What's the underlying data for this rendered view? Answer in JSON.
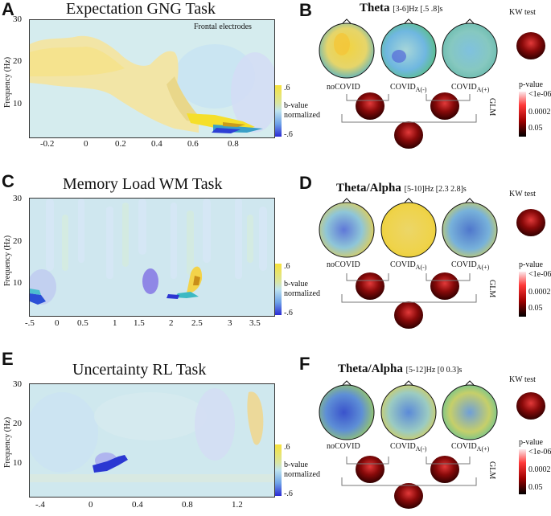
{
  "panels": {
    "A": {
      "letter": "A",
      "title": "Expectation GNG Task",
      "annotation": "Frontal electrodes",
      "ylabel": "Frequency (Hz)",
      "yticks": [
        "30",
        "20",
        "10"
      ],
      "xticks": [
        "-0.2",
        "0",
        "0.2",
        "0.4",
        "0.6",
        "0.8"
      ],
      "cbar": {
        "top": ".6",
        "mid1": "b-value",
        "mid2": "normalized",
        "bottom": "-.6"
      }
    },
    "B": {
      "letter": "B",
      "band": "Theta",
      "window": "[3-6]Hz [.5 .8]s",
      "kw": "KW test",
      "groups": [
        "noCOVID",
        "COVID",
        "COVID"
      ],
      "subs": [
        "A(-)",
        "A(+)"
      ],
      "glm": "GLM",
      "pval": {
        "label": "p-value",
        "t1": "<1e-06",
        "t2": "0.0002",
        "t3": "0.05"
      }
    },
    "C": {
      "letter": "C",
      "title": "Memory Load WM Task",
      "ylabel": "Frequency (Hz)",
      "yticks": [
        "30",
        "20",
        "10"
      ],
      "xticks": [
        "-.5",
        "0",
        "0.5",
        "1",
        "1.5",
        "2",
        "2.5",
        "3",
        "3.5"
      ],
      "cbar": {
        "top": ".6",
        "mid1": "b-value",
        "mid2": "normalized",
        "bottom": "-.6"
      }
    },
    "D": {
      "letter": "D",
      "band": "Theta/Alpha",
      "window": "[5-10]Hz [2.3 2.8]s",
      "kw": "KW test",
      "groups": [
        "noCOVID",
        "COVID",
        "COVID"
      ],
      "subs": [
        "A(-)",
        "A(+)"
      ],
      "glm": "GLM",
      "pval": {
        "label": "p-value",
        "t1": "<1e-06",
        "t2": "0.0002",
        "t3": "0.05"
      }
    },
    "E": {
      "letter": "E",
      "title": "Uncertainty  RL Task",
      "ylabel": "Frequency (Hz)",
      "yticks": [
        "30",
        "20",
        "10"
      ],
      "xticks": [
        "-.4",
        "0",
        "0.4",
        "0.8",
        "1.2"
      ],
      "cbar": {
        "top": ".6",
        "mid1": "b-value",
        "mid2": "normalized",
        "bottom": "-.6"
      }
    },
    "F": {
      "letter": "F",
      "band": "Theta/Alpha",
      "window": "[5-12]Hz [0 0.3]s",
      "kw": "KW test",
      "groups": [
        "noCOVID",
        "COVID",
        "COVID"
      ],
      "subs": [
        "A(-)",
        "A(+)"
      ],
      "glm": "GLM",
      "pval": {
        "label": "p-value",
        "t1": "<1e-06",
        "t2": "0.0002",
        "t3": "0.05"
      }
    }
  },
  "colors": {
    "yellow": "#f6e04a",
    "cyan": "#bfe6ef",
    "blue": "#2f3fd8",
    "red": "#c01010"
  }
}
